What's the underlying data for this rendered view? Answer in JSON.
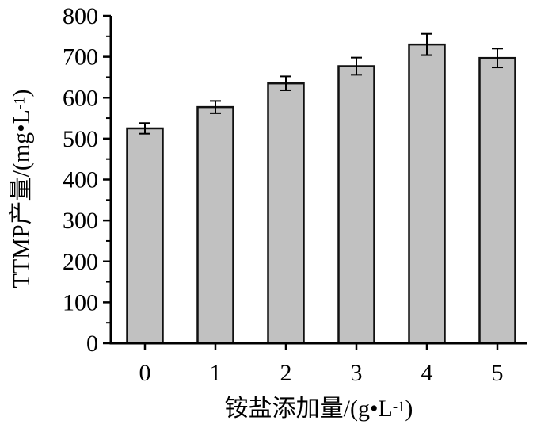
{
  "chart_data": {
    "type": "bar",
    "title": "",
    "categories": [
      "0",
      "1",
      "2",
      "3",
      "4",
      "5"
    ],
    "values": [
      525,
      577,
      635,
      677,
      730,
      697
    ],
    "errors": [
      13,
      15,
      17,
      21,
      26,
      23
    ],
    "xlabel": "铵盐添加量/(g•L⁻¹)",
    "ylabel": "TTMP产量/(mg•L⁻¹)",
    "xlabel_parts": {
      "prefix": "铵盐添加量/(g•L",
      "sup": "-1",
      "suffix": ")"
    },
    "ylabel_parts": {
      "prefix": "TTMP产量/(mg•L",
      "sup": "-1",
      "suffix": ")"
    },
    "ylim": [
      0,
      800
    ],
    "ytick_step": 100,
    "yminor_step": 50,
    "yticks": [
      "0",
      "100",
      "200",
      "300",
      "400",
      "500",
      "600",
      "700",
      "800"
    ],
    "grid": false,
    "legend": "none",
    "colors": {
      "bar_fill": "#c1c1c1",
      "bar_stroke": "#111111",
      "axis": "#000000",
      "background": "#ffffff"
    }
  }
}
